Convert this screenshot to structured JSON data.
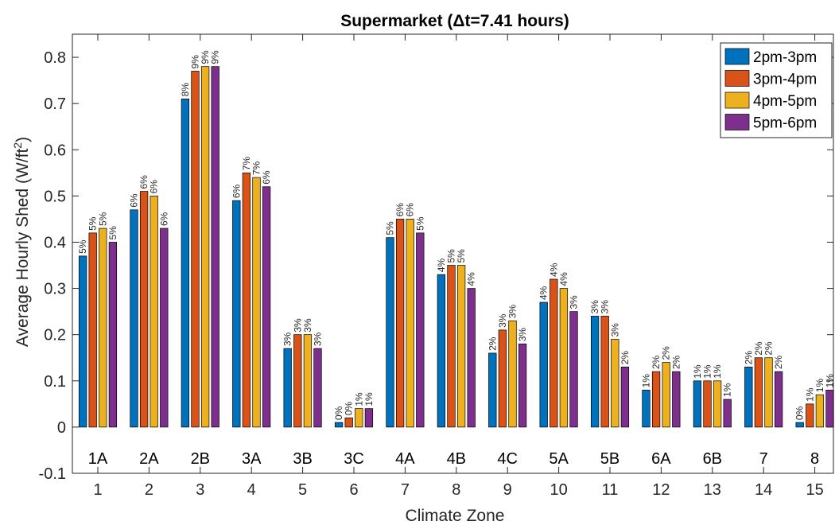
{
  "chart_data": {
    "type": "bar",
    "title": "Supermarket (Δt=7.41 hours)",
    "xlabel": "Climate Zone",
    "ylabel": "Average Hourly Shed (W/ft²)",
    "ylabel_main": "Average Hourly Shed (W/ft",
    "ylabel_sup": "2",
    "ylabel_end": ")",
    "ylim": [
      -0.1,
      0.85
    ],
    "yticks": [
      "-0.1",
      "0",
      "0.1",
      "0.2",
      "0.3",
      "0.4",
      "0.5",
      "0.6",
      "0.7",
      "0.8"
    ],
    "categories": [
      "1",
      "2",
      "3",
      "4",
      "5",
      "6",
      "7",
      "8",
      "9",
      "10",
      "11",
      "12",
      "13",
      "14",
      "15"
    ],
    "zone_labels": [
      "1A",
      "2A",
      "2B",
      "3A",
      "3B",
      "3C",
      "4A",
      "4B",
      "4C",
      "5A",
      "5B",
      "6A",
      "6B",
      "7",
      "8"
    ],
    "legend_position": "top-right",
    "grid": false,
    "series": [
      {
        "name": "2pm-3pm",
        "color": "#0072BD",
        "values": [
          0.37,
          0.47,
          0.71,
          0.49,
          0.17,
          0.01,
          0.41,
          0.33,
          0.16,
          0.27,
          0.24,
          0.08,
          0.1,
          0.13,
          0.01
        ],
        "labels": [
          "5%",
          "6%",
          "8%",
          "6%",
          "3%",
          "0%",
          "5%",
          "4%",
          "2%",
          "4%",
          "3%",
          "1%",
          "1%",
          "2%",
          "0%"
        ]
      },
      {
        "name": "3pm-4pm",
        "color": "#D95319",
        "values": [
          0.42,
          0.51,
          0.77,
          0.55,
          0.2,
          0.02,
          0.45,
          0.35,
          0.21,
          0.32,
          0.24,
          0.12,
          0.1,
          0.15,
          0.05
        ],
        "labels": [
          "5%",
          "6%",
          "9%",
          "7%",
          "3%",
          "0%",
          "6%",
          "5%",
          "3%",
          "4%",
          "3%",
          "2%",
          "1%",
          "2%",
          "1%"
        ]
      },
      {
        "name": "4pm-5pm",
        "color": "#EDB120",
        "values": [
          0.43,
          0.5,
          0.78,
          0.54,
          0.2,
          0.04,
          0.45,
          0.35,
          0.23,
          0.3,
          0.19,
          0.14,
          0.1,
          0.15,
          0.07
        ],
        "labels": [
          "5%",
          "6%",
          "9%",
          "7%",
          "3%",
          "1%",
          "6%",
          "5%",
          "3%",
          "4%",
          "3%",
          "2%",
          "1%",
          "2%",
          "1%"
        ]
      },
      {
        "name": "5pm-6pm",
        "color": "#7E2F8E",
        "values": [
          0.4,
          0.43,
          0.78,
          0.52,
          0.17,
          0.04,
          0.42,
          0.3,
          0.18,
          0.25,
          0.13,
          0.12,
          0.06,
          0.12,
          0.08
        ],
        "labels": [
          "5%",
          "6%",
          "9%",
          "6%",
          "3%",
          "1%",
          "5%",
          "4%",
          "3%",
          "3%",
          "2%",
          "2%",
          "1%",
          "2%",
          "1%"
        ]
      }
    ]
  }
}
